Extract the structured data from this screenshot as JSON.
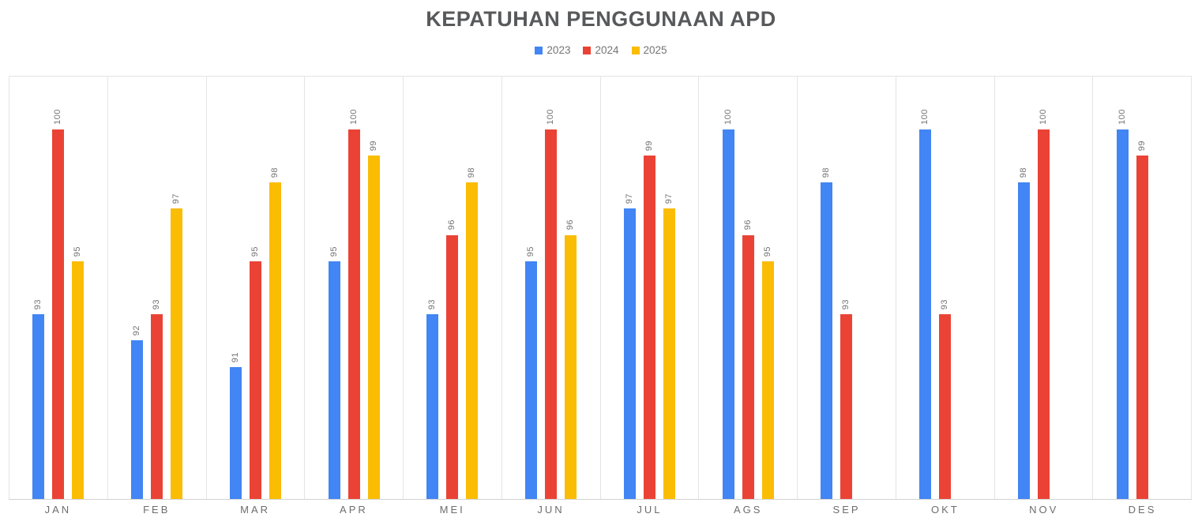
{
  "title": "KEPATUHAN PENGGUNAAN APD",
  "legend": {
    "position": "top",
    "items": [
      {
        "label": "2023",
        "color": "#4285f4"
      },
      {
        "label": "2024",
        "color": "#ea4335"
      },
      {
        "label": "2025",
        "color": "#fbbc04"
      }
    ]
  },
  "chart_data": {
    "type": "bar",
    "title": "KEPATUHAN PENGGUNAAN APD",
    "categories": [
      "JAN",
      "FEB",
      "MAR",
      "APR",
      "MEI",
      "JUN",
      "JUL",
      "AGS",
      "SEP",
      "OKT",
      "NOV",
      "DES"
    ],
    "series": [
      {
        "name": "2023",
        "color": "#4285f4",
        "values": [
          93,
          92,
          91,
          95,
          93,
          95,
          97,
          100,
          98,
          100,
          98,
          100
        ]
      },
      {
        "name": "2024",
        "color": "#ea4335",
        "values": [
          100,
          93,
          95,
          100,
          96,
          100,
          99,
          96,
          93,
          93,
          100,
          99
        ]
      },
      {
        "name": "2025",
        "color": "#fbbc04",
        "values": [
          95,
          97,
          98,
          99,
          98,
          96,
          97,
          95,
          null,
          null,
          null,
          null
        ]
      }
    ],
    "xlabel": "",
    "ylabel": "",
    "ylim": [
      86,
      102
    ],
    "grid": "vertical-category-boundaries",
    "gridline_color": "#e4e4e4",
    "axis_line_color": "#d2d2d2",
    "legend_position": "top",
    "data_labels": {
      "show": true,
      "rotation": -90,
      "color": "#757575"
    }
  },
  "colors": {
    "background": "#ffffff",
    "title_text": "#58595b",
    "legend_text": "#757575",
    "value_label_text": "#757575",
    "month_label_text": "#6d6d6d"
  }
}
